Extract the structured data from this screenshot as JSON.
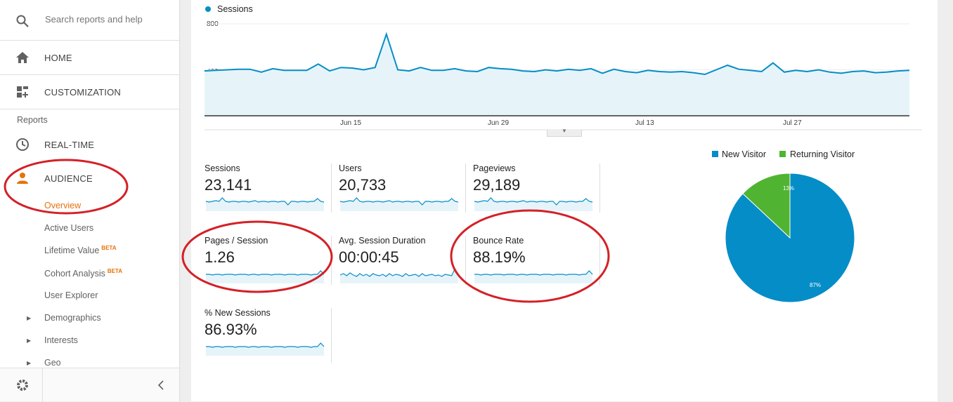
{
  "sidebar": {
    "search_placeholder": "Search reports and help",
    "home_label": "HOME",
    "customization_label": "CUSTOMIZATION",
    "reports_label": "Reports",
    "realtime_label": "REAL-TIME",
    "audience_label": "AUDIENCE",
    "audience_items": {
      "overview": "Overview",
      "active_users": "Active Users",
      "lifetime_value": "Lifetime Value",
      "cohort_analysis": "Cohort Analysis",
      "user_explorer": "User Explorer",
      "demographics": "Demographics",
      "interests": "Interests",
      "geo": "Geo"
    },
    "beta_badge": "BETA"
  },
  "timeline": {
    "series_name": "Sessions",
    "y_max_label": "800",
    "y_mid_label": "400",
    "x_labels": [
      "Jun 15",
      "Jun 29",
      "Jul 13",
      "Jul 27"
    ]
  },
  "metrics": {
    "sessions": {
      "label": "Sessions",
      "value": "23,141"
    },
    "users": {
      "label": "Users",
      "value": "20,733"
    },
    "pageviews": {
      "label": "Pageviews",
      "value": "29,189"
    },
    "pages_per_session": {
      "label": "Pages / Session",
      "value": "1.26"
    },
    "avg_session_duration": {
      "label": "Avg. Session Duration",
      "value": "00:00:45"
    },
    "bounce_rate": {
      "label": "Bounce Rate",
      "value": "88.19%"
    },
    "new_sessions": {
      "label": "% New Sessions",
      "value": "86.93%"
    }
  },
  "pie": {
    "new_visitor_label": "New Visitor",
    "returning_visitor_label": "Returning Visitor",
    "new_pct_label": "87%",
    "returning_pct_label": "13%",
    "new_pct": 87,
    "returning_pct": 13
  },
  "chart_data": {
    "type": "line",
    "series": [
      {
        "name": "Sessions",
        "values": [
          390,
          395,
          400,
          405,
          405,
          380,
          410,
          395,
          395,
          395,
          450,
          390,
          420,
          415,
          400,
          420,
          710,
          400,
          390,
          420,
          395,
          395,
          410,
          390,
          385,
          420,
          410,
          405,
          390,
          385,
          400,
          390,
          405,
          395,
          410,
          370,
          405,
          385,
          375,
          395,
          385,
          380,
          385,
          375,
          360,
          400,
          440,
          405,
          395,
          385,
          460,
          380,
          395,
          385,
          400,
          380,
          370,
          385,
          390,
          375,
          380,
          390,
          395
        ]
      }
    ],
    "x_tick_labels": [
      "Jun 15",
      "Jun 29",
      "Jul 13",
      "Jul 27"
    ],
    "ylim": [
      0,
      800
    ]
  },
  "colors": {
    "accent_orange": "#e8710a",
    "series_blue": "#058dc7",
    "fill_blue": "#e6f4fa",
    "returning_green": "#50b432",
    "annotation_red": "#d42027"
  }
}
